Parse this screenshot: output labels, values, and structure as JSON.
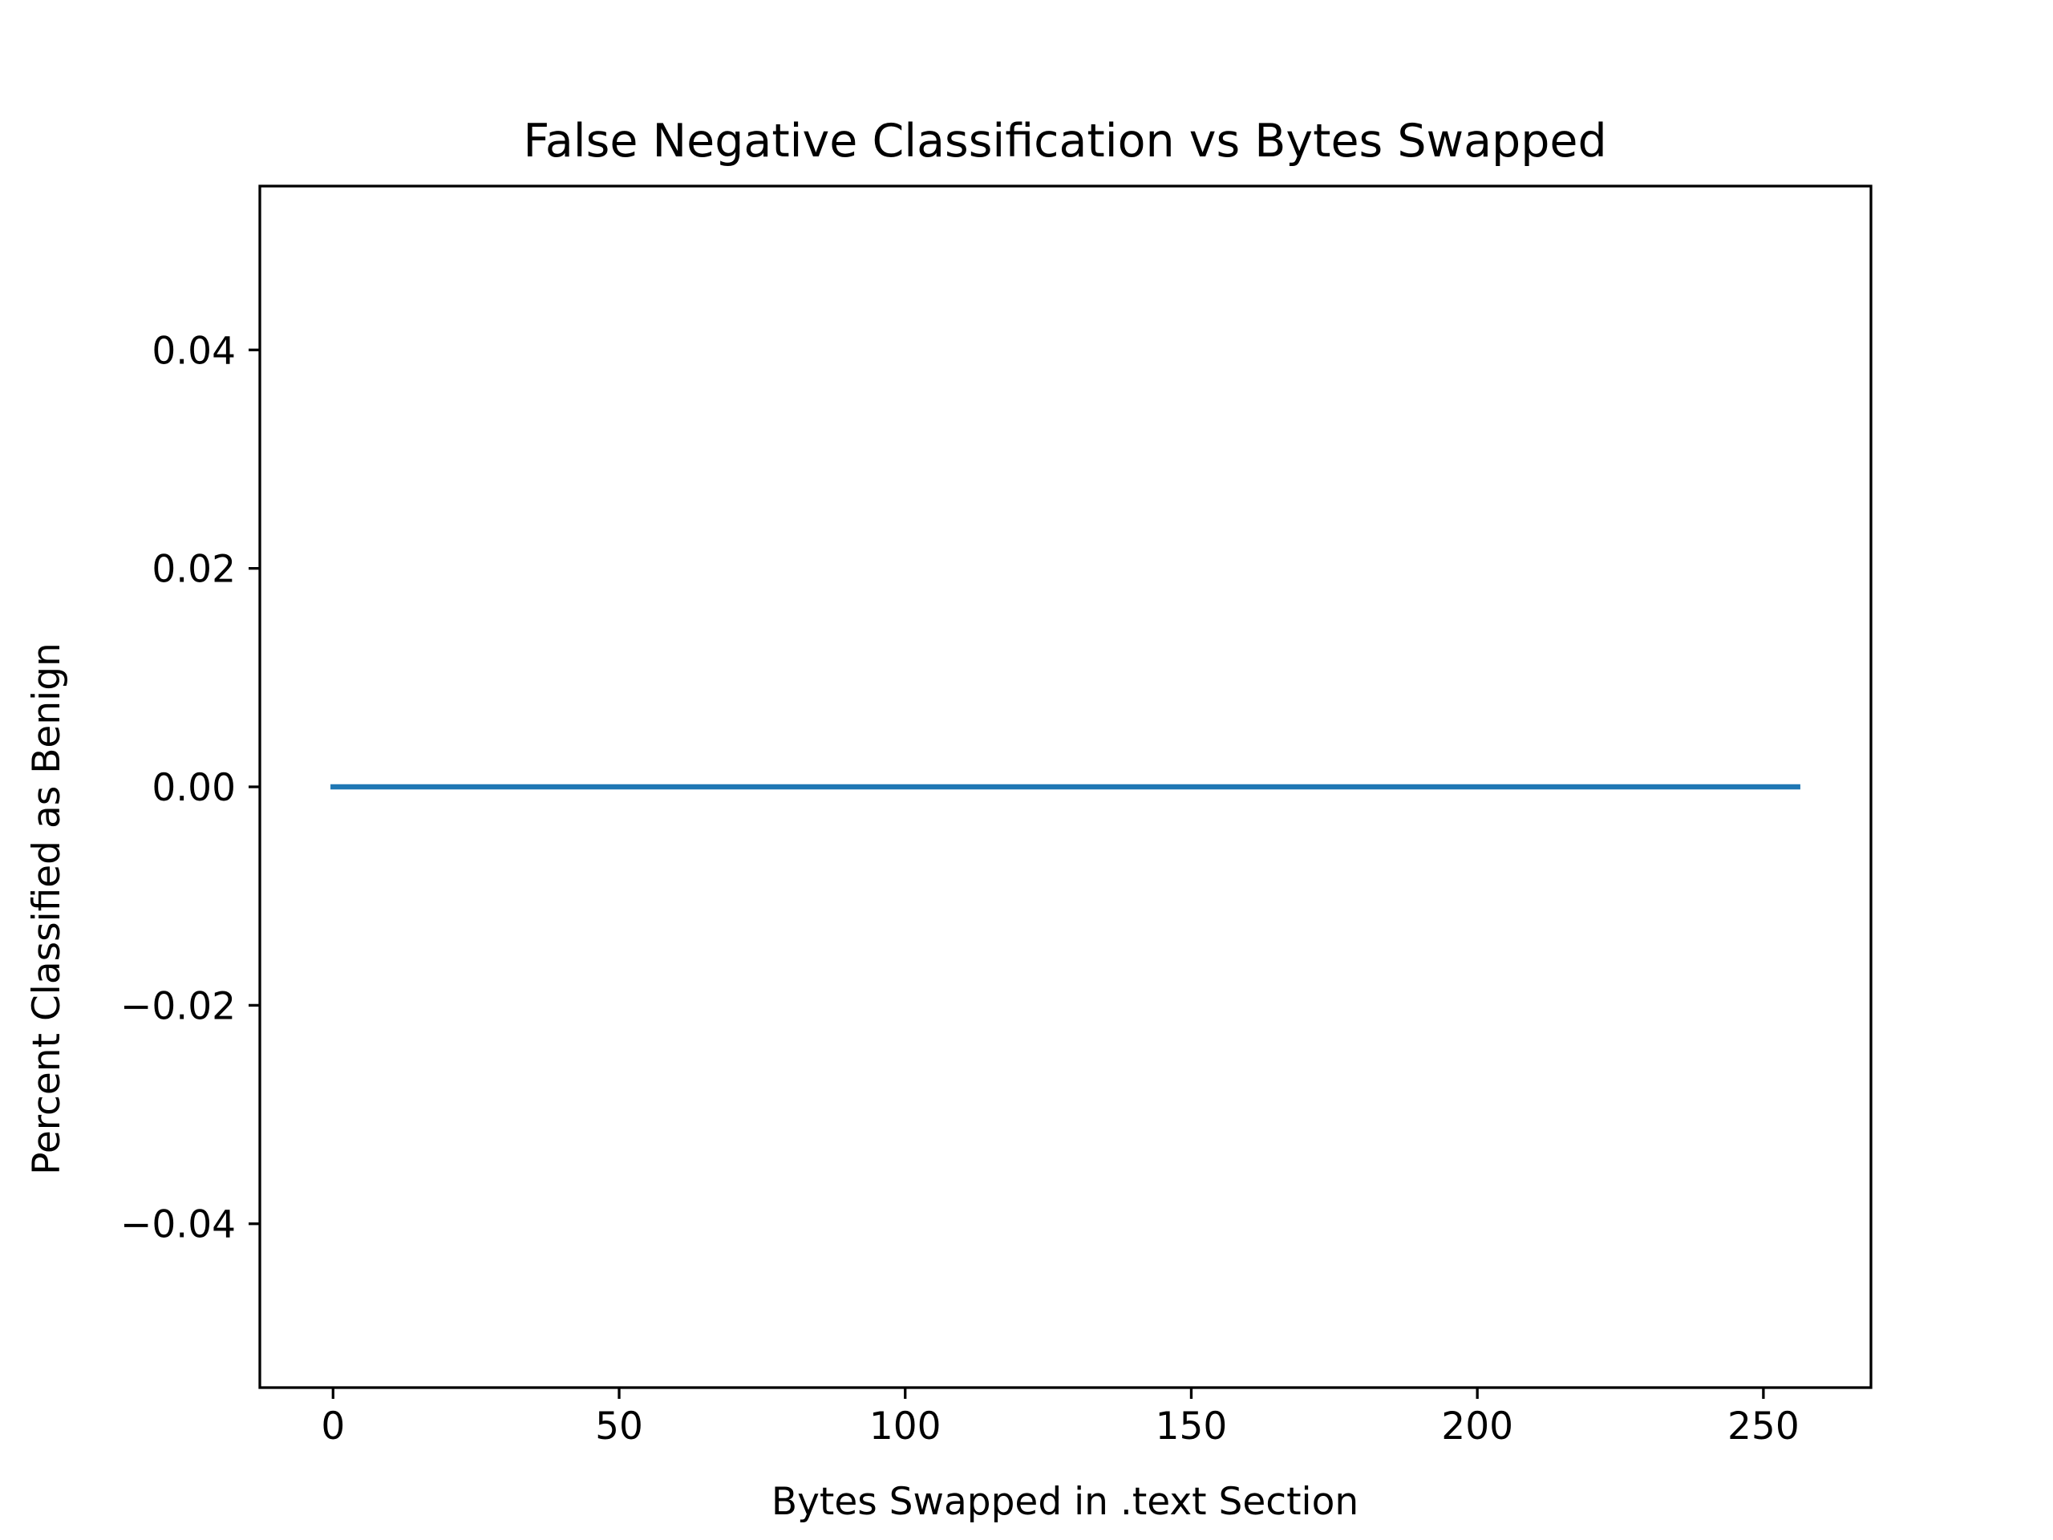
{
  "chart_data": {
    "type": "line",
    "title": "False Negative Classification vs Bytes Swapped",
    "xlabel": "Bytes Swapped in .text Section",
    "ylabel": "Percent Classified as Benign",
    "xlim": [
      -12.8,
      268.8
    ],
    "ylim": [
      -0.055,
      0.055
    ],
    "xticks": [
      0,
      50,
      100,
      150,
      200,
      250
    ],
    "xtick_labels": [
      "0",
      "50",
      "100",
      "150",
      "200",
      "250"
    ],
    "yticks": [
      0.04,
      0.02,
      0.0,
      -0.02,
      -0.04
    ],
    "ytick_labels": [
      "0.04",
      "0.02",
      "0.00",
      "−0.02",
      "−0.04"
    ],
    "grid": false,
    "series": [
      {
        "color": "#1f77b4",
        "x": [
          0,
          256
        ],
        "y": [
          0.0,
          0.0
        ]
      }
    ]
  }
}
